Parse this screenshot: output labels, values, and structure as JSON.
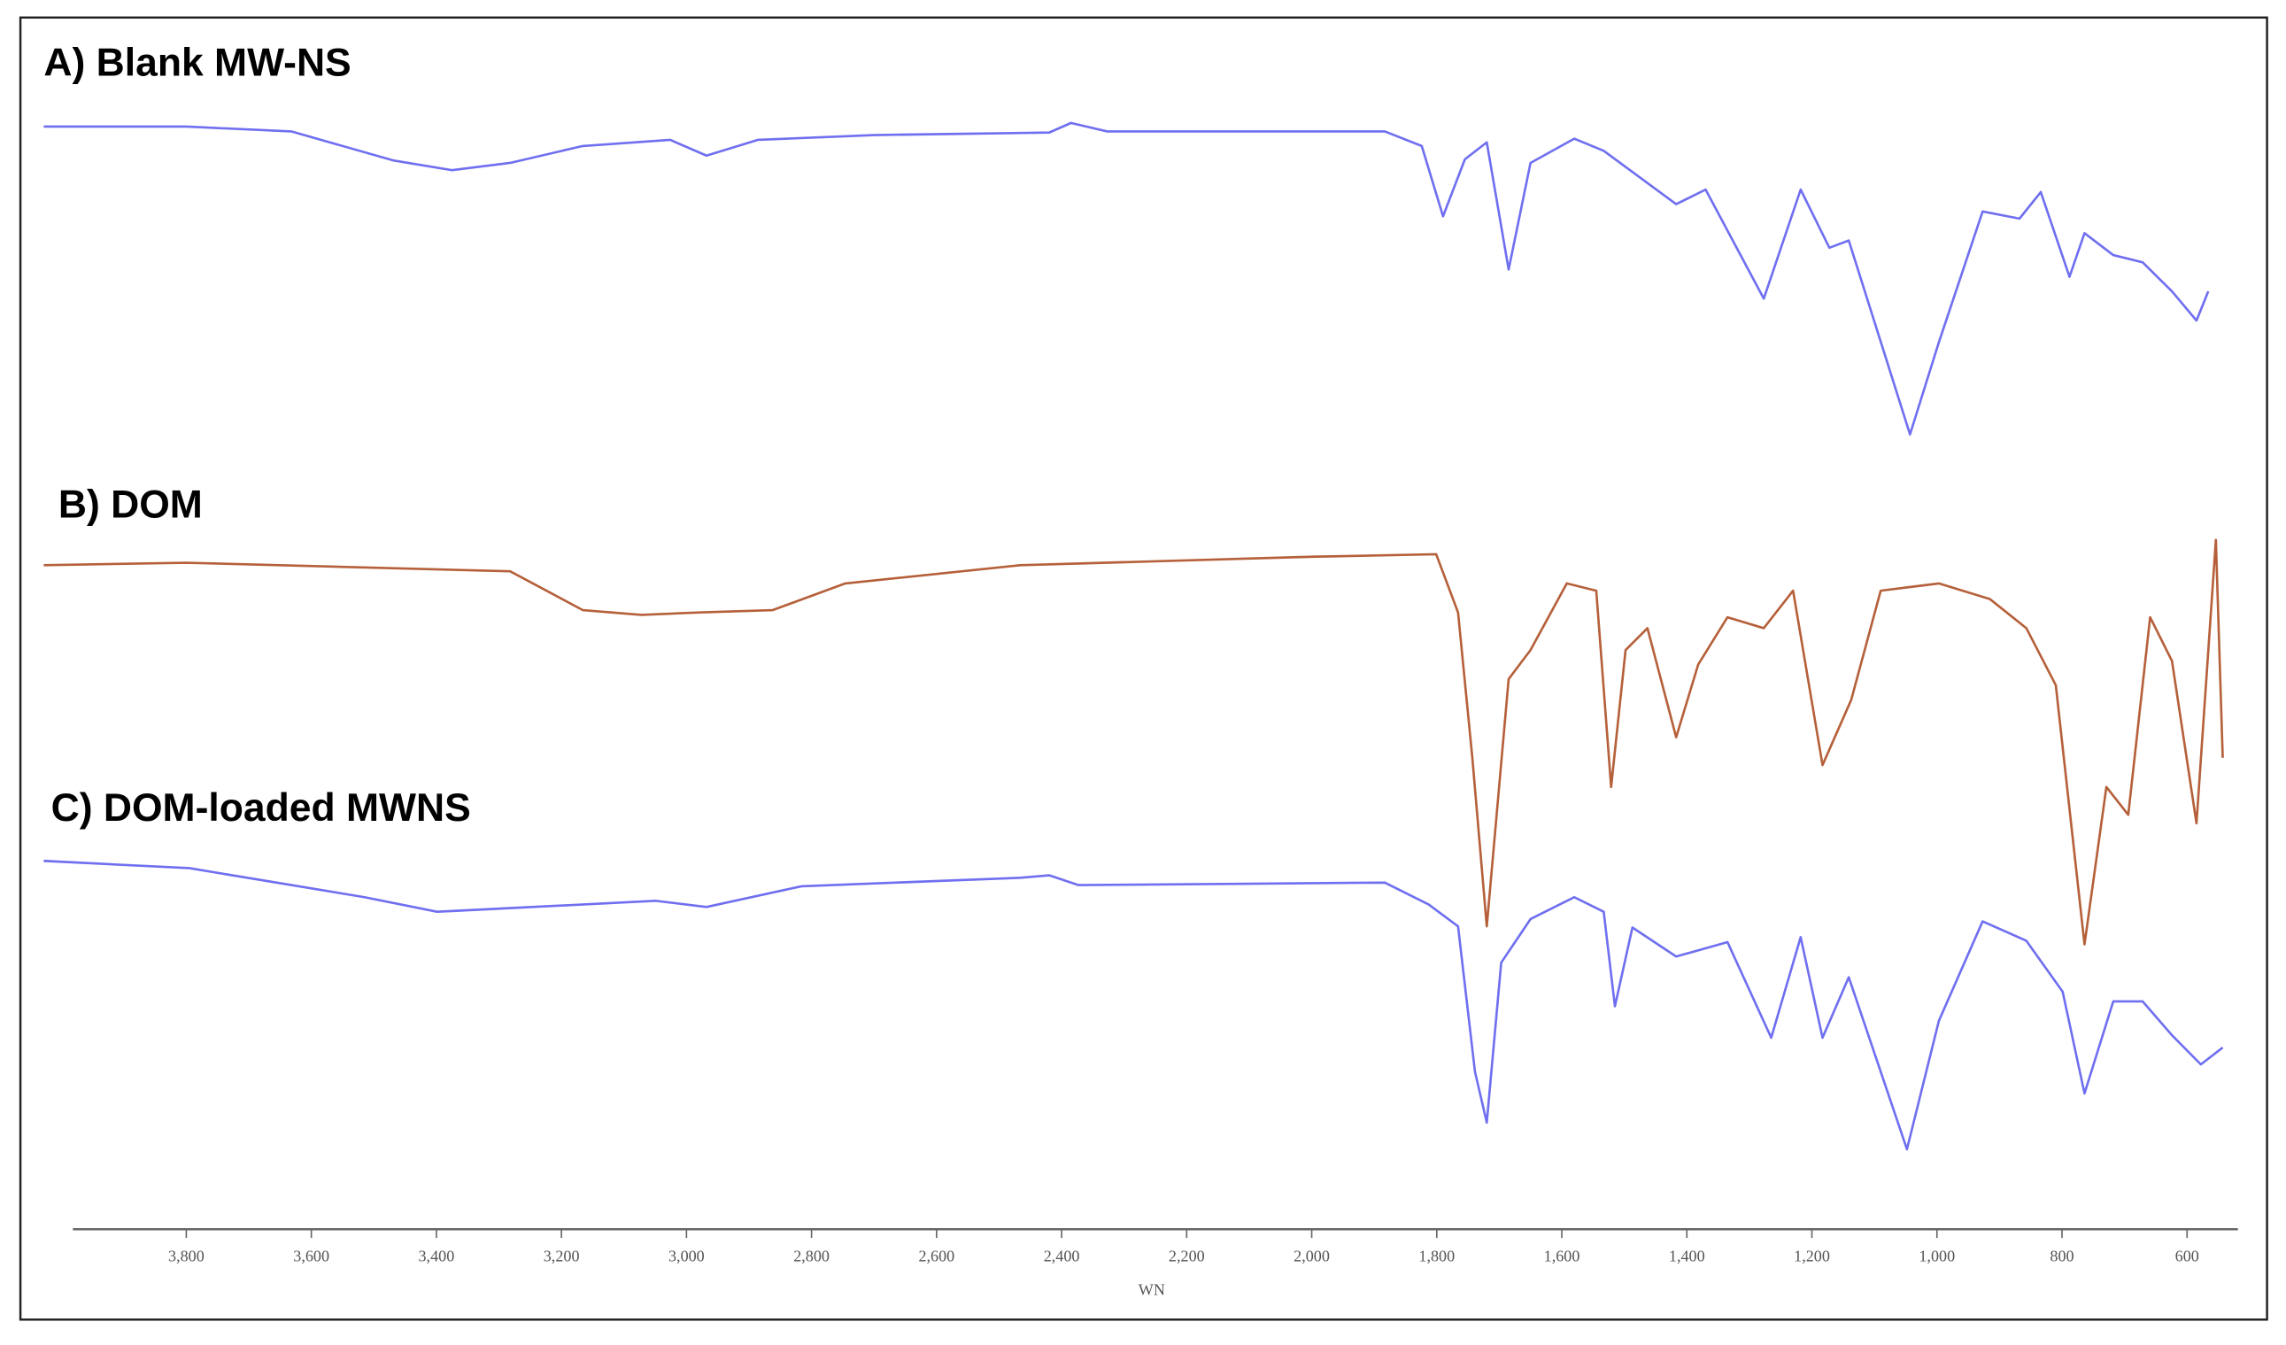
{
  "chart_data": {
    "type": "line",
    "xlabel": "WN",
    "xlim": [
      4028,
      542
    ],
    "ylim": [
      0,
      100
    ],
    "xticks": [
      {
        "value": 3800,
        "label": "3,800"
      },
      {
        "value": 3600,
        "label": "3,600"
      },
      {
        "value": 3400,
        "label": "3,400"
      },
      {
        "value": 3200,
        "label": "3,200"
      },
      {
        "value": 3000,
        "label": "3,000"
      },
      {
        "value": 2800,
        "label": "2,800"
      },
      {
        "value": 2600,
        "label": "2,600"
      },
      {
        "value": 2400,
        "label": "2,400"
      },
      {
        "value": 2200,
        "label": "2,200"
      },
      {
        "value": 2000,
        "label": "2,000"
      },
      {
        "value": 1800,
        "label": "1,800"
      },
      {
        "value": 1600,
        "label": "1,600"
      },
      {
        "value": 1400,
        "label": "1,400"
      },
      {
        "value": 1200,
        "label": "1,200"
      },
      {
        "value": 1000,
        "label": "1,000"
      },
      800,
      600
    ],
    "series": [
      {
        "name": "A) Blank MW-NS",
        "color": "#6f6ff0",
        "x": [
          4028,
          3800,
          3632,
          3468,
          3375,
          3282,
          3166,
          3026,
          2968,
          2886,
          2700,
          2420,
          2385,
          2327,
          1883,
          1824,
          1790,
          1755,
          1720,
          1685,
          1650,
          1580,
          1533,
          1417,
          1370,
          1277,
          1218,
          1172,
          1141,
          1043,
          997,
          927,
          868,
          834,
          788,
          764,
          718,
          671,
          624,
          585,
          566
        ],
        "values": [
          91.0,
          91.0,
          90.6,
          88.2,
          87.4,
          88.0,
          89.4,
          89.9,
          88.6,
          89.9,
          90.3,
          90.5,
          91.3,
          90.6,
          90.6,
          89.4,
          83.6,
          88.3,
          89.7,
          79.2,
          88.0,
          90.0,
          89.0,
          84.6,
          85.8,
          76.8,
          85.8,
          81.0,
          81.6,
          65.6,
          73.2,
          84.0,
          83.4,
          85.6,
          78.6,
          82.2,
          80.4,
          79.8,
          77.4,
          75.0,
          77.4
        ]
      },
      {
        "name": "B) DOM",
        "color": "#b5603a",
        "x": [
          4028,
          3800,
          3282,
          3166,
          3072,
          2979,
          2862,
          2746,
          2466,
          1999,
          1801,
          1766,
          1743,
          1720,
          1685,
          1650,
          1592,
          1545,
          1521,
          1498,
          1463,
          1417,
          1382,
          1335,
          1277,
          1230,
          1183,
          1137,
          1090,
          997,
          915,
          857,
          810,
          764,
          729,
          694,
          659,
          624,
          585,
          554,
          543
        ],
        "values": [
          54.8,
          55.0,
          54.3,
          51.1,
          50.7,
          50.9,
          51.1,
          53.3,
          54.8,
          55.5,
          55.7,
          50.9,
          38.9,
          25.0,
          45.4,
          47.8,
          53.3,
          52.7,
          36.5,
          47.8,
          49.6,
          40.6,
          46.6,
          50.5,
          49.6,
          52.7,
          38.3,
          43.7,
          52.7,
          53.3,
          52.0,
          49.6,
          44.9,
          23.5,
          36.5,
          34.2,
          50.5,
          46.9,
          33.5,
          56.9,
          38.9
        ]
      },
      {
        "name": "C) DOM-loaded MWNS",
        "color": "#6f6ff0",
        "x": [
          4028,
          3795,
          3515,
          3399,
          3049,
          2968,
          2816,
          2466,
          2420,
          2373,
          1883,
          1813,
          1766,
          1739,
          1720,
          1697,
          1650,
          1580,
          1533,
          1515,
          1487,
          1417,
          1335,
          1265,
          1218,
          1183,
          1141,
          1048,
          997,
          927,
          857,
          799,
          764,
          718,
          671,
          624,
          578,
          543
        ],
        "values": [
          30.4,
          29.8,
          27.4,
          26.2,
          27.1,
          26.6,
          28.3,
          29.0,
          29.2,
          28.4,
          28.6,
          26.8,
          25.0,
          13.0,
          8.8,
          22.0,
          25.6,
          27.4,
          26.2,
          18.4,
          24.9,
          22.5,
          23.7,
          15.8,
          24.1,
          15.8,
          20.8,
          6.6,
          17.2,
          25.4,
          23.8,
          19.6,
          11.2,
          18.8,
          18.8,
          16.0,
          13.6,
          15.0
        ]
      }
    ]
  }
}
